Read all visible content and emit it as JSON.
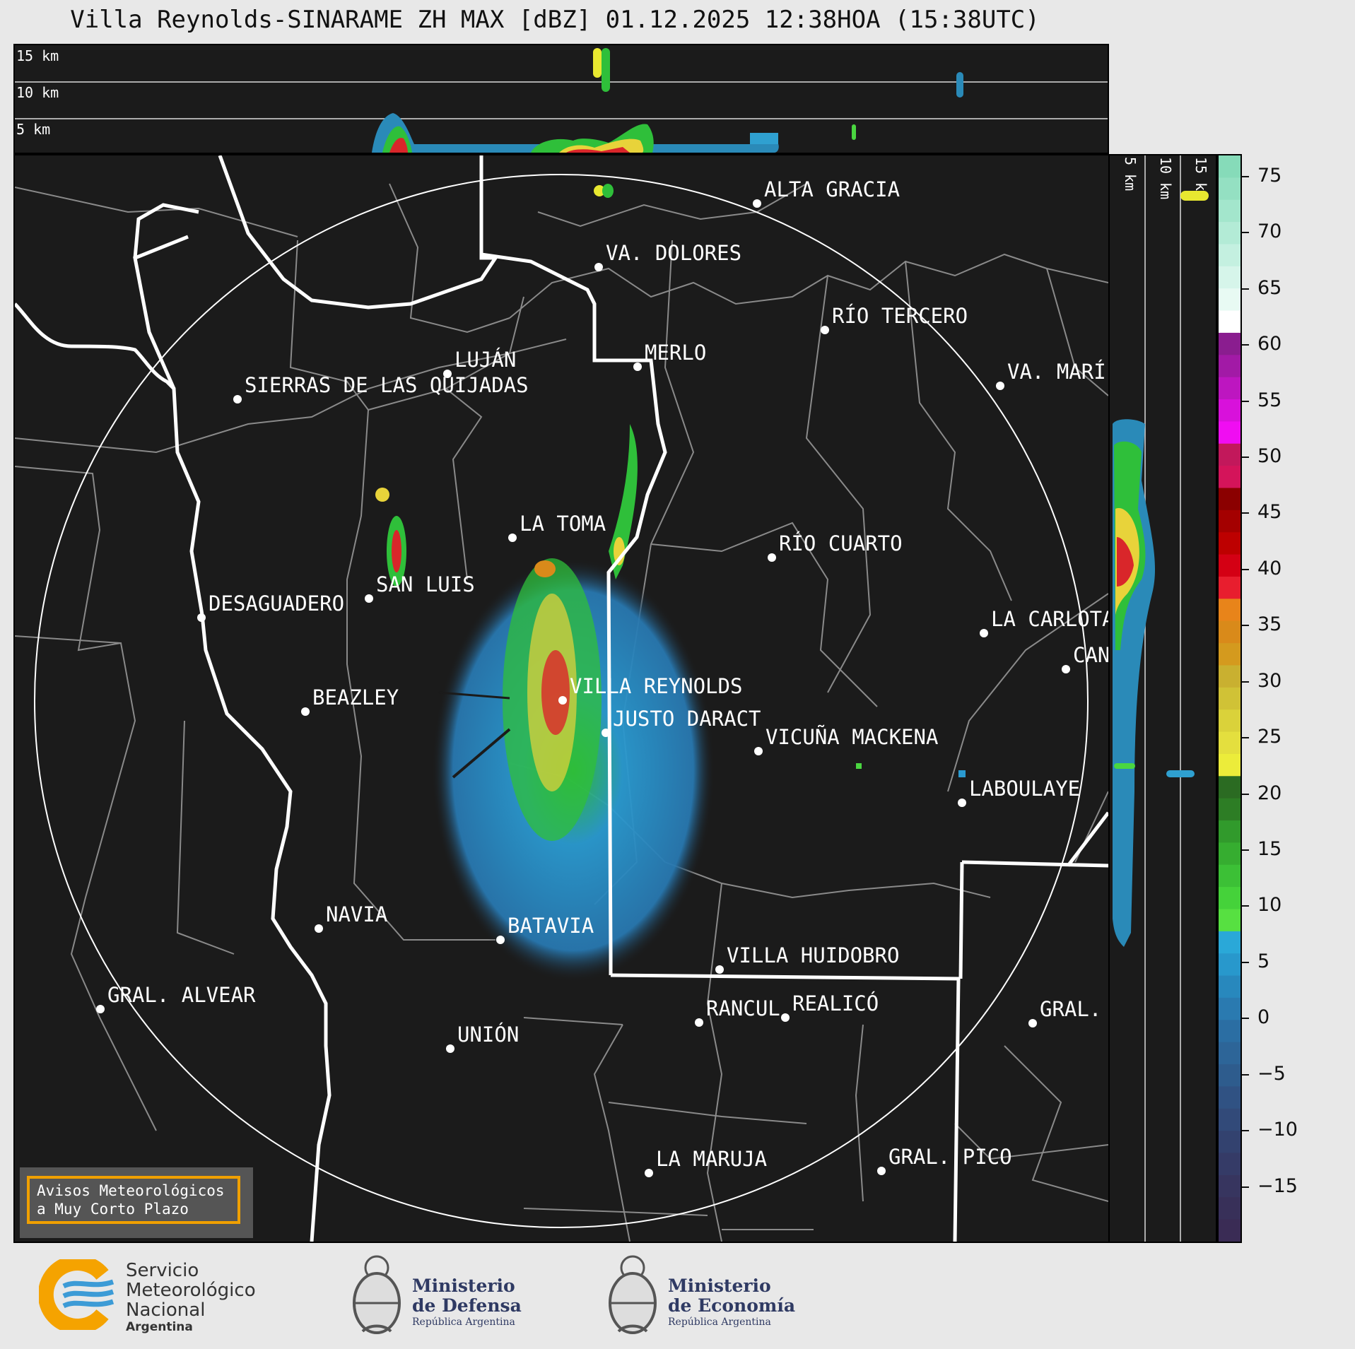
{
  "title": "Villa Reynolds-SINARAME ZH MAX [dBZ] 01.12.2025 12:38HOA (15:38UTC)",
  "height_labels": [
    "15 km",
    "10 km",
    "5 km"
  ],
  "side_height_labels": [
    "5 km",
    "10 km",
    "15 km"
  ],
  "cities": [
    {
      "name": "ALTA GRACIA"
    },
    {
      "name": "VA. DOLORES"
    },
    {
      "name": "RÍO TERCERO"
    },
    {
      "name": "LUJÁN"
    },
    {
      "name": "MERLO"
    },
    {
      "name": "SIERRAS DE LAS QUIJADAS"
    },
    {
      "name": "VA. MARÍ"
    },
    {
      "name": "LA TOMA"
    },
    {
      "name": "RÍO CUARTO"
    },
    {
      "name": "SAN LUIS"
    },
    {
      "name": "DESAGUADERO"
    },
    {
      "name": "LA CARLOTA"
    },
    {
      "name": "CAN"
    },
    {
      "name": "VILLA REYNOLDS"
    },
    {
      "name": "BEAZLEY"
    },
    {
      "name": "JUSTO DARACT"
    },
    {
      "name": "VICUÑA MACKENA"
    },
    {
      "name": "LABOULAYE"
    },
    {
      "name": "NAVIA"
    },
    {
      "name": "BATAVIA"
    },
    {
      "name": "VILLA HUIDOBRO"
    },
    {
      "name": "GRAL. ALVEAR"
    },
    {
      "name": "RANCUL"
    },
    {
      "name": "REALICÓ"
    },
    {
      "name": "GRAL."
    },
    {
      "name": "UNIÓN"
    },
    {
      "name": "LA MARUJA"
    },
    {
      "name": "GRAL. PICO"
    }
  ],
  "colorbar": {
    "ticks": [
      "75",
      "70",
      "65",
      "60",
      "55",
      "50",
      "45",
      "40",
      "35",
      "30",
      "25",
      "20",
      "15",
      "10",
      "5",
      "0",
      "−5",
      "−10",
      "−15"
    ],
    "range_dbz": [
      -20,
      77
    ]
  },
  "notice": {
    "line1": "Avisos Meteorológicos",
    "line2": "a Muy Corto Plazo"
  },
  "logos": {
    "smn": {
      "line1": "Servicio",
      "line2": "Meteorológico",
      "line3": "Nacional",
      "line4": "Argentina"
    },
    "defensa": {
      "line1": "Ministerio",
      "line2": "de Defensa",
      "line3": "República Argentina"
    },
    "economia": {
      "line1": "Ministerio",
      "line2": "de Economía",
      "line3": "República Argentina"
    }
  },
  "colors": {
    "background": "#1b1b1b",
    "notice_border": "#f0a000",
    "smn_orange": "#f5a300",
    "smn_blue": "#3c9bd6"
  }
}
